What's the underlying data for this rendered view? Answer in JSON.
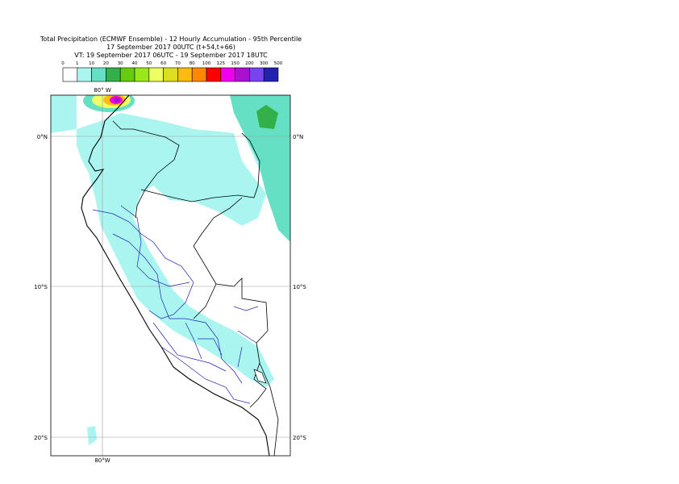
{
  "header": {
    "title": "Total Precipitation (ECMWF Ensemble) - 12 Hourly Accumulation - 95th Percentile",
    "run": "17 September 2017 00UTC (t+54,t+66)",
    "valid": "VT: 19 September 2017 06UTC - 19 September 2017 18UTC"
  },
  "legend": {
    "levels": [
      "0",
      "1",
      "10",
      "20",
      "30",
      "40",
      "50",
      "60",
      "70",
      "80",
      "100",
      "125",
      "150",
      "200",
      "300",
      "500"
    ],
    "colors": [
      "#ffffff",
      "#aaf5f0",
      "#66e0c4",
      "#33b04a",
      "#66cc11",
      "#99e81a",
      "#eeff66",
      "#dddd22",
      "#ffbb11",
      "#ff8800",
      "#ff0000",
      "#ee00ee",
      "#aa11cc",
      "#7744ee",
      "#2222aa",
      "#101050"
    ]
  },
  "map": {
    "lon_label_top": "80° W",
    "lon_label_bottom": "80°W",
    "lat_labels_left": [
      "0°N",
      "10°S",
      "20°S"
    ],
    "lat_labels_right": [
      "0°N",
      "10°S",
      "20°S"
    ]
  }
}
